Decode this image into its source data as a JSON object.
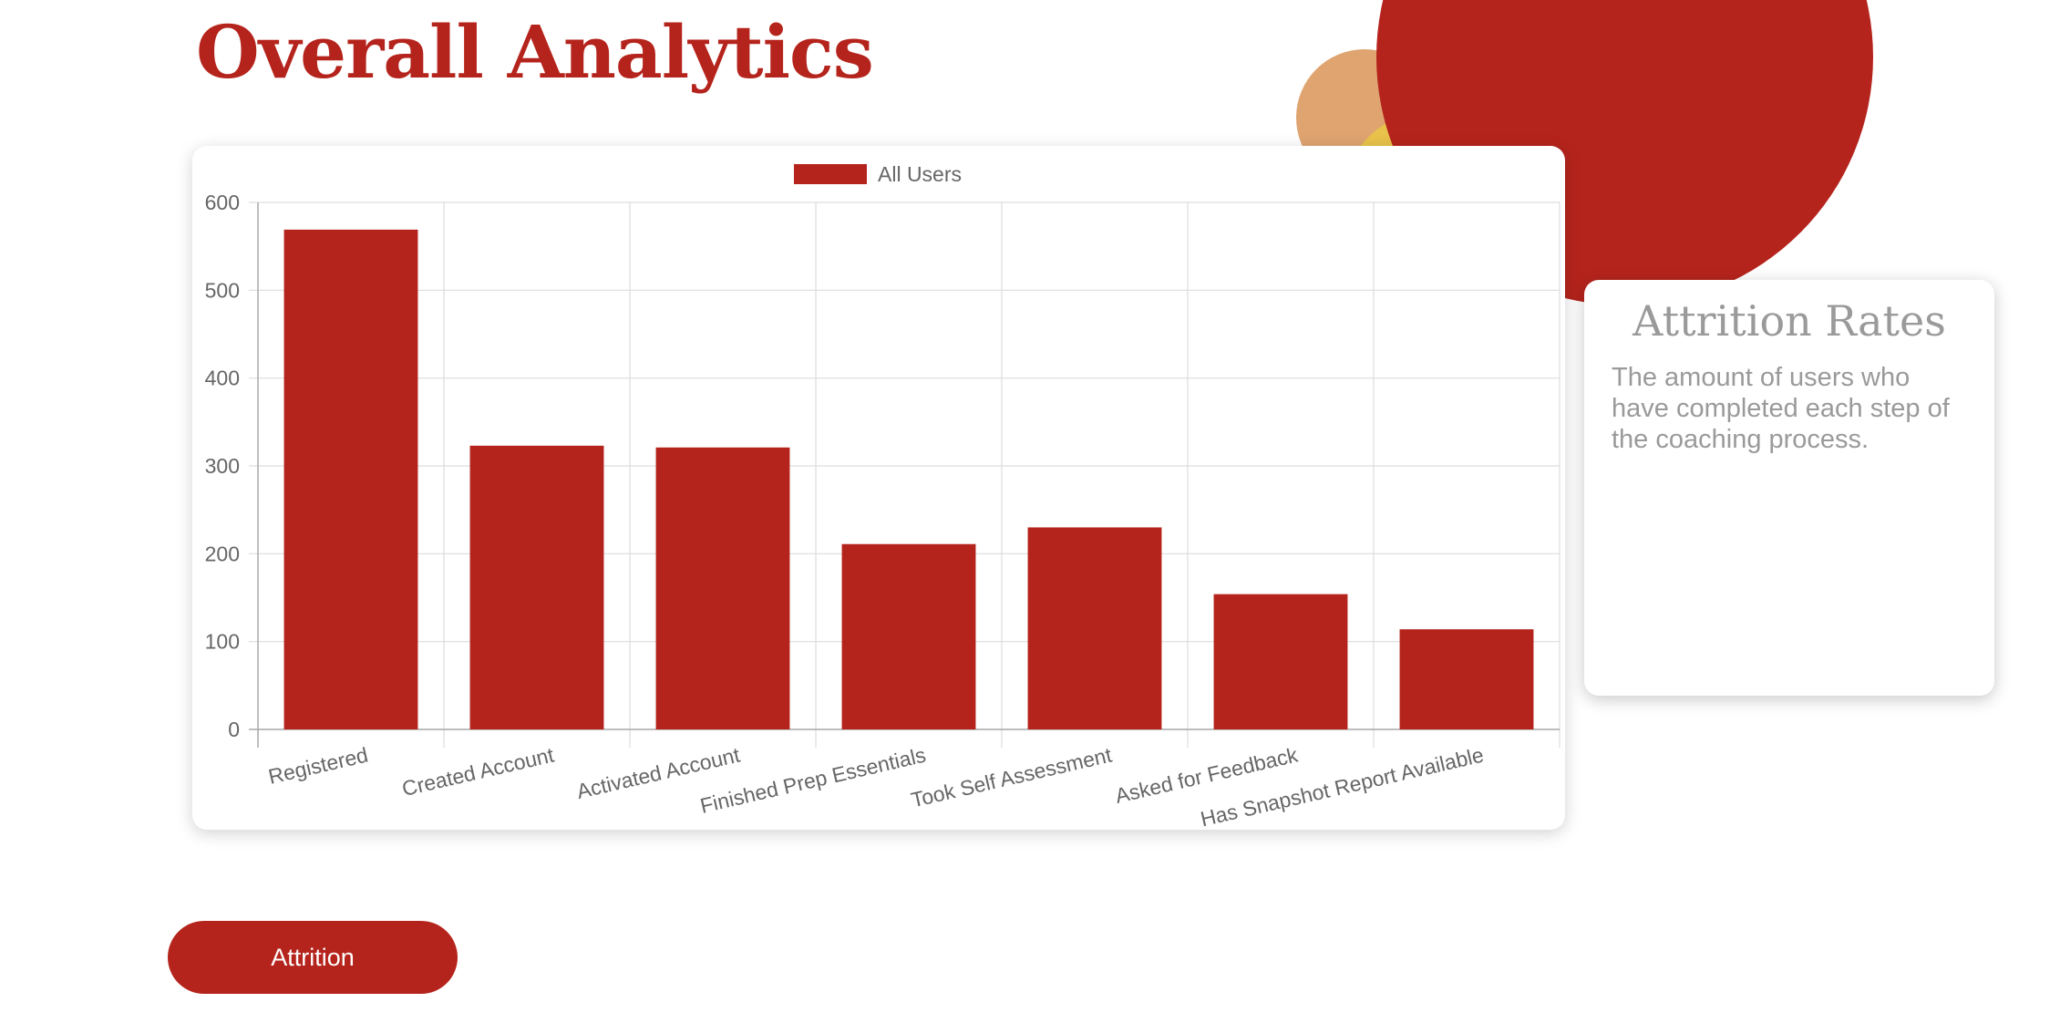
{
  "header": {
    "title": "Overall Analytics"
  },
  "info_card": {
    "title": "Attrition Rates",
    "description": "The amount of users who have completed each step of the coaching process."
  },
  "actions": {
    "attrition_label": "Attrition"
  },
  "colors": {
    "brand": "#b5241c",
    "accent_orange": "#dfa470",
    "accent_yellow": "#e8c24a"
  },
  "chart_data": {
    "type": "bar",
    "categories": [
      "Registered",
      "Created Account",
      "Activated Account",
      "Finished Prep Essentials",
      "Took Self Assessment",
      "Asked for Feedback",
      "Has Snapshot Report Available"
    ],
    "series": [
      {
        "name": "All Users",
        "values": [
          569,
          323,
          321,
          211,
          230,
          154,
          114
        ],
        "color": "#b5241c"
      }
    ],
    "ylim": [
      0,
      600
    ],
    "yticks": [
      0,
      100,
      200,
      300,
      400,
      500,
      600
    ],
    "grid": true,
    "legend": "top-center"
  }
}
